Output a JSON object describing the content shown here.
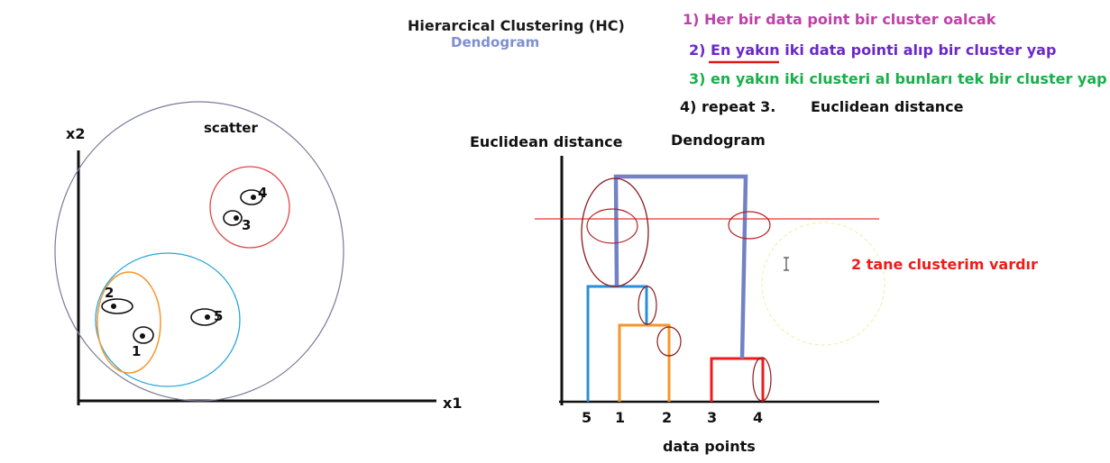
{
  "header": {
    "title": "Hierarcical Clustering  (HC)",
    "subtitle": "Dendogram"
  },
  "steps": {
    "s1": "1) Her bir data point bir cluster oalcak",
    "s2": "2) En yakın iki data pointi alıp bir cluster yap",
    "s3": "3) en yakın iki clusteri al bunları tek bir cluster yap",
    "s4": "4) repeat 3.",
    "s4_note": "Euclidean distance"
  },
  "scatter": {
    "label": "scatter",
    "x_axis": "x1",
    "y_axis": "x2",
    "points": [
      "1",
      "2",
      "3",
      "4",
      "5"
    ]
  },
  "dendrogram": {
    "title": "Dendogram",
    "y_axis": "Euclidean distance",
    "x_axis": "data points",
    "leaves": [
      "5",
      "1",
      "2",
      "3",
      "4"
    ],
    "note": "2 tane clusterim vardır"
  },
  "colors": {
    "blue_link": "#2b8ed8",
    "orange_link": "#f5962a",
    "red_link": "#ee1c1c",
    "top_link": "#7282c4",
    "highlight_ring": "#8b1a1a"
  }
}
